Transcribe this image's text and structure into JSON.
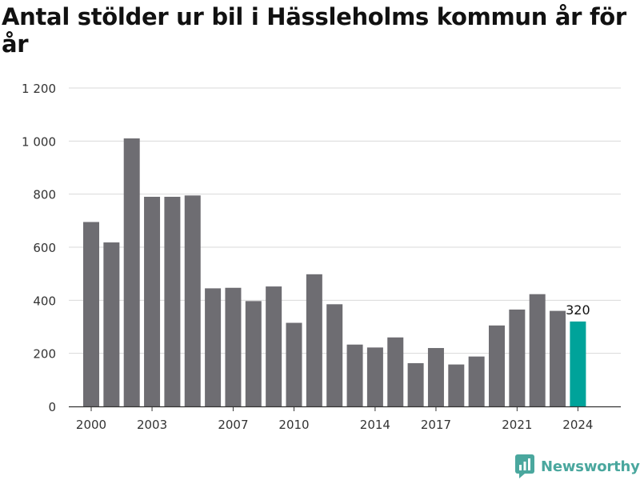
{
  "colors": {
    "bar": "#6e6d72",
    "highlight": "#00a39a",
    "grid": "#d9d9d9",
    "axis": "#333333",
    "brand": "#4aa79e"
  },
  "brand": {
    "name": "Newsworthy",
    "icon": "newsworthy-logo-icon"
  },
  "chart_data": {
    "type": "bar",
    "title": "Antal stölder ur bil i Hässleholms kommun år för år",
    "xlabel": "",
    "ylabel": "",
    "categories": [
      "2000",
      "2001",
      "2002",
      "2003",
      "2004",
      "2005",
      "2006",
      "2007",
      "2008",
      "2009",
      "2010",
      "2011",
      "2012",
      "2013",
      "2014",
      "2015",
      "2016",
      "2017",
      "2018",
      "2019",
      "2020",
      "2021",
      "2022",
      "2023",
      "2024"
    ],
    "values": [
      695,
      618,
      1010,
      790,
      790,
      795,
      445,
      447,
      397,
      452,
      315,
      498,
      385,
      233,
      222,
      260,
      163,
      220,
      158,
      188,
      305,
      365,
      423,
      360,
      320
    ],
    "ylim": [
      0,
      1200
    ],
    "yticks": [
      0,
      200,
      400,
      600,
      800,
      1000,
      1200
    ],
    "ytick_labels": [
      "0",
      "200",
      "400",
      "600",
      "800",
      "1 000",
      "1 200"
    ],
    "xticks_shown": [
      "2000",
      "2003",
      "2007",
      "2010",
      "2014",
      "2017",
      "2021",
      "2024"
    ],
    "highlight_category": "2024",
    "data_labels": [
      {
        "category": "2024",
        "text": "320"
      }
    ],
    "grid": true,
    "legend": "none"
  }
}
